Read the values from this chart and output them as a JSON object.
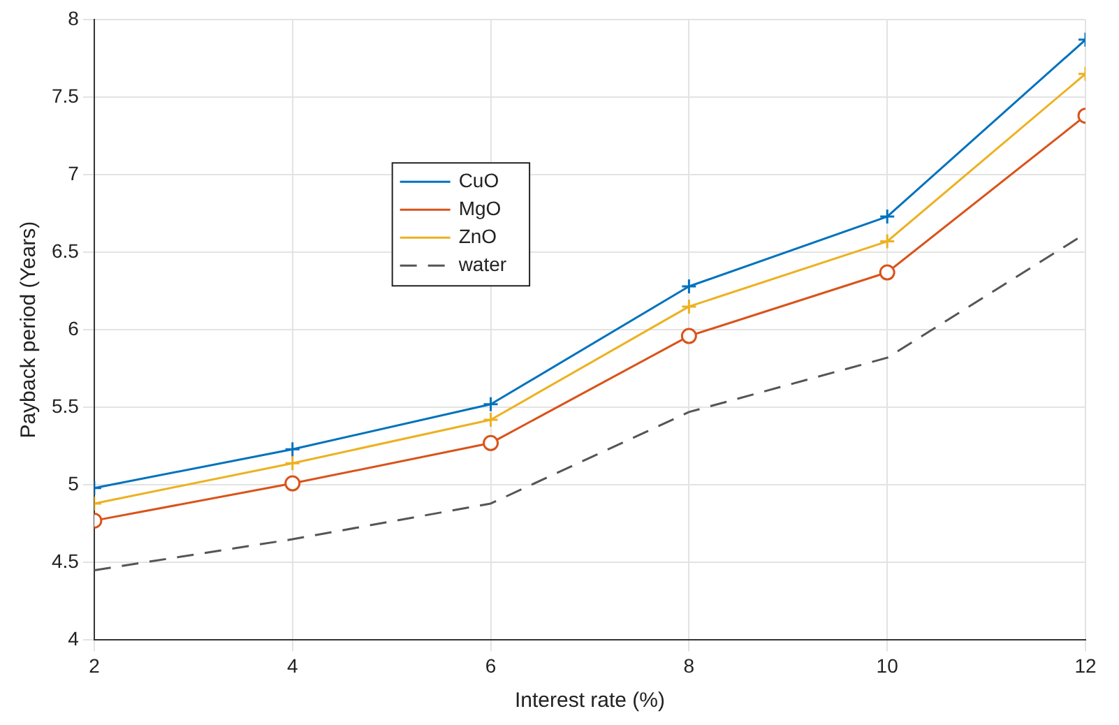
{
  "chart_data": {
    "type": "line",
    "xlabel": "Interest rate (%)",
    "ylabel": "Payback period (Years)",
    "x": [
      2,
      4,
      6,
      8,
      10,
      12
    ],
    "xlim": [
      2,
      12
    ],
    "xticks": [
      2,
      4,
      6,
      8,
      10,
      12
    ],
    "ylim": [
      4,
      8
    ],
    "yticks": [
      4,
      4.5,
      5,
      5.5,
      6,
      6.5,
      7,
      7.5,
      8
    ],
    "grid": true,
    "legend": "top left",
    "series": [
      {
        "name": "CuO",
        "color": "#0072bd",
        "marker": "cross",
        "line_style": "solid",
        "values": [
          4.98,
          5.23,
          5.52,
          6.28,
          6.73,
          7.87
        ]
      },
      {
        "name": "MgO",
        "color": "#d95319",
        "marker": "circle",
        "line_style": "solid",
        "values": [
          4.77,
          5.01,
          5.27,
          5.96,
          6.37,
          7.38
        ]
      },
      {
        "name": "ZnO",
        "color": "#edb120",
        "marker": "cross",
        "line_style": "solid",
        "values": [
          4.88,
          5.14,
          5.42,
          6.15,
          6.57,
          7.65
        ]
      },
      {
        "name": "water",
        "color": "#555555",
        "marker": "none",
        "line_style": "dashed",
        "values": [
          4.45,
          4.65,
          4.88,
          5.47,
          5.82,
          6.62
        ]
      }
    ]
  }
}
